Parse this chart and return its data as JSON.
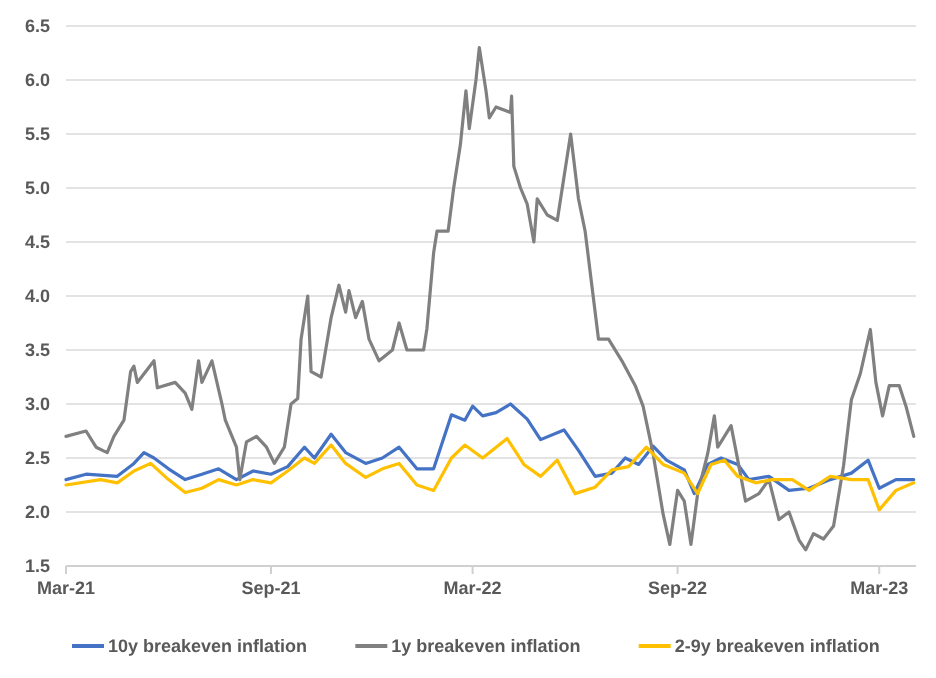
{
  "chart_data": {
    "type": "line",
    "xlim": [
      "2021-03-01",
      "2023-04-03"
    ],
    "ylim": [
      1.5,
      6.5
    ],
    "xticks": [
      {
        "value": "2021-03-01",
        "label": "Mar-21"
      },
      {
        "value": "2021-09-01",
        "label": "Sep-21"
      },
      {
        "value": "2022-03-01",
        "label": "Mar-22"
      },
      {
        "value": "2022-09-01",
        "label": "Sep-22"
      },
      {
        "value": "2023-03-01",
        "label": "Mar-23"
      }
    ],
    "yticks": [
      {
        "value": 1.5,
        "label": "1.5"
      },
      {
        "value": 2,
        "label": "2.0"
      },
      {
        "value": 2.5,
        "label": "2.5"
      },
      {
        "value": 3,
        "label": "3.0"
      },
      {
        "value": 3.5,
        "label": "3.5"
      },
      {
        "value": 4,
        "label": "4.0"
      },
      {
        "value": 4.5,
        "label": "4.5"
      },
      {
        "value": 5,
        "label": "5.0"
      },
      {
        "value": 5.5,
        "label": "5.5"
      },
      {
        "value": 6,
        "label": "6.0"
      },
      {
        "value": 6.5,
        "label": "6.5"
      }
    ],
    "grid": "y",
    "legend": "bottom",
    "marker": "none",
    "line_style": "solid",
    "series": [
      {
        "name": "10y breakeven inflation",
        "color": "#4472c4",
        "x": [
          "2021-03-01",
          "2021-03-19",
          "2021-04-16",
          "2021-05-01",
          "2021-05-10",
          "2021-05-19",
          "2021-06-01",
          "2021-06-16",
          "2021-07-01",
          "2021-07-16",
          "2021-08-01",
          "2021-08-16",
          "2021-09-01",
          "2021-09-16",
          "2021-10-01",
          "2021-10-10",
          "2021-10-25",
          "2021-11-07",
          "2021-11-25",
          "2021-12-10",
          "2021-12-25",
          "2022-01-10",
          "2022-01-25",
          "2022-02-10",
          "2022-02-22",
          "2022-03-01",
          "2022-03-10",
          "2022-03-22",
          "2022-04-04",
          "2022-04-19",
          "2022-05-01",
          "2022-05-22",
          "2022-06-04",
          "2022-06-19",
          "2022-07-04",
          "2022-07-16",
          "2022-07-28",
          "2022-08-10",
          "2022-08-22",
          "2022-09-07",
          "2022-09-16",
          "2022-09-28",
          "2022-10-10",
          "2022-10-25",
          "2022-11-04",
          "2022-11-22",
          "2022-12-10",
          "2022-12-28",
          "2023-01-16",
          "2023-02-04",
          "2023-02-19",
          "2023-03-01",
          "2023-03-16",
          "2023-04-01"
        ],
        "values": [
          2.3,
          2.35,
          2.33,
          2.45,
          2.55,
          2.5,
          2.4,
          2.3,
          2.35,
          2.4,
          2.3,
          2.38,
          2.35,
          2.42,
          2.6,
          2.5,
          2.72,
          2.55,
          2.45,
          2.5,
          2.6,
          2.4,
          2.4,
          2.9,
          2.85,
          2.98,
          2.89,
          2.92,
          3.0,
          2.86,
          2.67,
          2.76,
          2.57,
          2.33,
          2.36,
          2.5,
          2.44,
          2.61,
          2.48,
          2.39,
          2.17,
          2.44,
          2.5,
          2.44,
          2.3,
          2.33,
          2.2,
          2.22,
          2.3,
          2.36,
          2.48,
          2.22,
          2.3,
          2.3
        ]
      },
      {
        "name": "1y breakeven inflation",
        "color": "#808080",
        "x": [
          "2021-03-01",
          "2021-03-19",
          "2021-03-28",
          "2021-04-07",
          "2021-04-13",
          "2021-04-22",
          "2021-04-28",
          "2021-05-01",
          "2021-05-04",
          "2021-05-19",
          "2021-05-22",
          "2021-06-07",
          "2021-06-16",
          "2021-06-22",
          "2021-06-28",
          "2021-07-01",
          "2021-07-10",
          "2021-07-19",
          "2021-07-22",
          "2021-08-01",
          "2021-08-04",
          "2021-08-10",
          "2021-08-19",
          "2021-08-28",
          "2021-09-04",
          "2021-09-13",
          "2021-09-19",
          "2021-09-25",
          "2021-09-28",
          "2021-10-04",
          "2021-10-07",
          "2021-10-16",
          "2021-10-25",
          "2021-11-01",
          "2021-11-07",
          "2021-11-10",
          "2021-11-16",
          "2021-11-22",
          "2021-11-28",
          "2021-12-07",
          "2021-12-19",
          "2021-12-25",
          "2022-01-01",
          "2022-01-16",
          "2022-01-19",
          "2022-01-25",
          "2022-01-28",
          "2022-02-07",
          "2022-02-12",
          "2022-02-18",
          "2022-02-23",
          "2022-02-26",
          "2022-03-04",
          "2022-03-07",
          "2022-03-13",
          "2022-03-16",
          "2022-03-22",
          "2022-04-04",
          "2022-04-05",
          "2022-04-07",
          "2022-04-13",
          "2022-04-19",
          "2022-04-25",
          "2022-04-28",
          "2022-05-07",
          "2022-05-16",
          "2022-05-19",
          "2022-05-28",
          "2022-06-04",
          "2022-06-10",
          "2022-06-16",
          "2022-06-22",
          "2022-07-01",
          "2022-07-13",
          "2022-07-25",
          "2022-08-01",
          "2022-08-10",
          "2022-08-19",
          "2022-08-25",
          "2022-09-01",
          "2022-09-07",
          "2022-09-13",
          "2022-09-19",
          "2022-09-28",
          "2022-10-04",
          "2022-10-07",
          "2022-10-10",
          "2022-10-19",
          "2022-10-25",
          "2022-11-01",
          "2022-11-13",
          "2022-11-22",
          "2022-12-01",
          "2022-12-10",
          "2022-12-19",
          "2022-12-25",
          "2023-01-01",
          "2023-01-10",
          "2023-01-19",
          "2023-01-28",
          "2023-02-04",
          "2023-02-12",
          "2023-02-21",
          "2023-02-26",
          "2023-03-04",
          "2023-03-10",
          "2023-03-19",
          "2023-03-25",
          "2023-04-01"
        ],
        "values": [
          2.7,
          2.75,
          2.6,
          2.55,
          2.7,
          2.85,
          3.3,
          3.35,
          3.2,
          3.4,
          3.15,
          3.2,
          3.1,
          2.95,
          3.4,
          3.2,
          3.4,
          3.0,
          2.85,
          2.6,
          2.3,
          2.65,
          2.7,
          2.6,
          2.45,
          2.6,
          3.0,
          3.05,
          3.6,
          4.0,
          3.3,
          3.25,
          3.8,
          4.1,
          3.85,
          4.05,
          3.8,
          3.95,
          3.6,
          3.4,
          3.5,
          3.75,
          3.5,
          3.5,
          3.7,
          4.4,
          4.6,
          4.6,
          5.0,
          5.4,
          5.9,
          5.55,
          6.0,
          6.3,
          5.9,
          5.65,
          5.75,
          5.7,
          5.85,
          5.2,
          5.0,
          4.85,
          4.5,
          4.9,
          4.75,
          4.7,
          4.9,
          5.5,
          4.9,
          4.6,
          4.1,
          3.6,
          3.6,
          3.4,
          3.17,
          2.98,
          2.54,
          1.98,
          1.7,
          2.2,
          2.1,
          1.7,
          2.17,
          2.54,
          2.89,
          2.6,
          2.65,
          2.8,
          2.48,
          2.1,
          2.17,
          2.3,
          1.93,
          2.0,
          1.74,
          1.65,
          1.8,
          1.75,
          1.87,
          2.43,
          3.04,
          3.28,
          3.69,
          3.2,
          2.89,
          3.17,
          3.17,
          2.98,
          2.7
        ]
      },
      {
        "name": "2-9y breakeven inflation",
        "color": "#ffc000",
        "x": [
          "2021-03-01",
          "2021-04-01",
          "2021-04-16",
          "2021-05-01",
          "2021-05-16",
          "2021-06-01",
          "2021-06-16",
          "2021-07-01",
          "2021-07-16",
          "2021-08-01",
          "2021-08-16",
          "2021-09-01",
          "2021-09-16",
          "2021-10-01",
          "2021-10-10",
          "2021-10-25",
          "2021-11-07",
          "2021-11-25",
          "2021-12-10",
          "2021-12-25",
          "2022-01-10",
          "2022-01-25",
          "2022-02-10",
          "2022-02-22",
          "2022-03-10",
          "2022-04-01",
          "2022-04-16",
          "2022-05-01",
          "2022-05-16",
          "2022-06-01",
          "2022-06-19",
          "2022-07-04",
          "2022-07-19",
          "2022-08-04",
          "2022-08-19",
          "2022-09-07",
          "2022-09-19",
          "2022-10-01",
          "2022-10-13",
          "2022-10-25",
          "2022-11-10",
          "2022-11-25",
          "2022-12-13",
          "2022-12-28",
          "2023-01-16",
          "2023-02-04",
          "2023-02-19",
          "2023-03-01",
          "2023-03-16",
          "2023-04-01"
        ],
        "values": [
          2.25,
          2.3,
          2.27,
          2.38,
          2.45,
          2.3,
          2.18,
          2.22,
          2.3,
          2.25,
          2.3,
          2.27,
          2.38,
          2.5,
          2.45,
          2.62,
          2.45,
          2.32,
          2.4,
          2.45,
          2.25,
          2.2,
          2.5,
          2.62,
          2.5,
          2.68,
          2.44,
          2.33,
          2.48,
          2.17,
          2.23,
          2.39,
          2.42,
          2.6,
          2.44,
          2.36,
          2.17,
          2.44,
          2.48,
          2.33,
          2.27,
          2.3,
          2.3,
          2.2,
          2.33,
          2.3,
          2.3,
          2.02,
          2.2,
          2.27
        ]
      }
    ]
  }
}
